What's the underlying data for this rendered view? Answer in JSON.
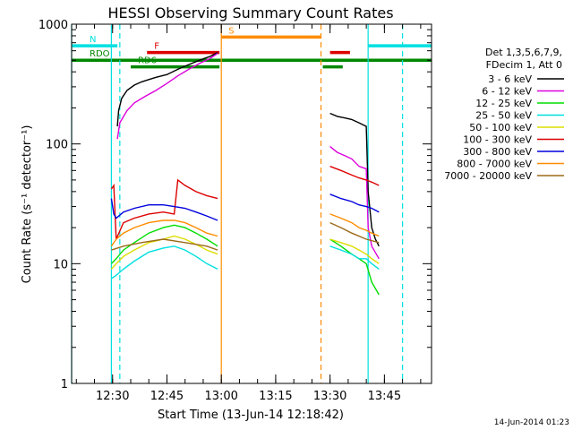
{
  "chart_data": {
    "type": "line",
    "title": "HESSI Observing Summary Count Rates",
    "xlabel": "Start Time (13-Jun-14 12:18:42)",
    "ylabel": "Count Rate (s⁻¹ detector⁻¹)",
    "y_scale": "log",
    "ylim": [
      1,
      1000
    ],
    "xlim": [
      "12:18:42",
      "13:58:00"
    ],
    "y_ticks": [
      "1",
      "10",
      "100",
      "1000"
    ],
    "x_ticks": [
      "12:30",
      "12:45",
      "13:00",
      "13:15",
      "13:30",
      "13:45"
    ],
    "footer_date": "14-Jun-2014 01:23",
    "legend": {
      "header": [
        "Det 1,3,5,6,7,9,",
        "FDecim 1, Att 0"
      ],
      "placement": "right"
    },
    "series": [
      {
        "name": "3 - 6 keV",
        "color": "#000000",
        "segments": [
          {
            "x": [
              "12:31:20",
              "12:31:40",
              "12:32:30",
              "12:34:00",
              "12:36:00",
              "12:38:00",
              "12:40:00",
              "12:42:00",
              "12:45:00",
              "12:48:00",
              "12:51:00",
              "12:54:00",
              "12:57:00",
              "12:59:00"
            ],
            "y": [
              140,
              190,
              240,
              280,
              310,
              330,
              345,
              360,
              380,
              420,
              460,
              500,
              540,
              580
            ]
          },
          {
            "x": [
              "13:30:00",
              "13:32:00",
              "13:34:00",
              "13:36:00",
              "13:38:00",
              "13:40:00",
              "13:40:30",
              "13:41:30",
              "13:42:30",
              "13:43:30"
            ],
            "y": [
              180,
              170,
              165,
              160,
              150,
              140,
              40,
              20,
              16,
              14
            ]
          }
        ]
      },
      {
        "name": "6 - 12 keV",
        "color": "#dd00dd",
        "segments": [
          {
            "x": [
              "12:31:20",
              "12:32:00",
              "12:34:00",
              "12:36:00",
              "12:39:00",
              "12:42:00",
              "12:45:00",
              "12:48:00",
              "12:51:00",
              "12:54:00",
              "12:57:00",
              "12:59:00"
            ],
            "y": [
              110,
              150,
              190,
              220,
              250,
              280,
              320,
              370,
              420,
              470,
              520,
              570
            ]
          },
          {
            "x": [
              "13:30:00",
              "13:32:00",
              "13:34:00",
              "13:36:00",
              "13:38:00",
              "13:40:00",
              "13:40:30",
              "13:41:30",
              "13:43:30"
            ],
            "y": [
              95,
              85,
              80,
              75,
              65,
              62,
              20,
              14,
              11
            ]
          }
        ]
      },
      {
        "name": "12 - 25 keV",
        "color": "#00dd00",
        "segments": [
          {
            "x": [
              "12:29:40",
              "12:31:00",
              "12:33:00",
              "12:36:00",
              "12:40:00",
              "12:44:00",
              "12:47:00",
              "12:50:00",
              "12:53:00",
              "12:56:00",
              "12:59:00"
            ],
            "y": [
              10,
              11,
              13,
              15,
              18,
              20,
              21,
              20,
              18,
              16,
              14
            ]
          },
          {
            "x": [
              "13:30:00",
              "13:33:00",
              "13:36:00",
              "13:38:00",
              "13:40:00",
              "13:41:30",
              "13:43:30"
            ],
            "y": [
              16,
              14,
              12,
              11,
              10,
              7,
              5.5
            ]
          }
        ]
      },
      {
        "name": "25 - 50 keV",
        "color": "#00e0e0",
        "segments": [
          {
            "x": [
              "12:29:40",
              "12:31:00",
              "12:33:00",
              "12:36:00",
              "12:40:00",
              "12:44:00",
              "12:47:00",
              "12:50:00",
              "12:53:00",
              "12:56:00",
              "12:59:00"
            ],
            "y": [
              7.5,
              8,
              9,
              10.5,
              12.5,
              13.5,
              14,
              13,
              11.5,
              10,
              9
            ]
          },
          {
            "x": [
              "13:30:00",
              "13:33:00",
              "13:36:00",
              "13:38:00",
              "13:40:00",
              "13:41:30",
              "13:43:30"
            ],
            "y": [
              14,
              13,
              12,
              11,
              11,
              10,
              9
            ]
          }
        ]
      },
      {
        "name": "50 - 100 keV",
        "color": "#dddd00",
        "segments": [
          {
            "x": [
              "12:29:40",
              "12:31:00",
              "12:33:00",
              "12:36:00",
              "12:40:00",
              "12:44:00",
              "12:47:00",
              "12:50:00",
              "12:53:00",
              "12:56:00",
              "12:59:00"
            ],
            "y": [
              9,
              10,
              11.5,
              13,
              15,
              16,
              17,
              16,
              14.5,
              13,
              12
            ]
          },
          {
            "x": [
              "13:30:00",
              "13:33:00",
              "13:36:00",
              "13:38:00",
              "13:40:00",
              "13:41:30",
              "13:43:30"
            ],
            "y": [
              16,
              15,
              14,
              13,
              12,
              11,
              10
            ]
          }
        ]
      },
      {
        "name": "100 - 300 keV",
        "color": "#dd0000",
        "segments": [
          {
            "x": [
              "12:29:40",
              "12:30:20",
              "12:31:00",
              "12:33:00",
              "12:36:00",
              "12:40:00",
              "12:44:00",
              "12:47:00",
              "12:48:00",
              "12:50:00",
              "12:53:00",
              "12:56:00",
              "12:59:00"
            ],
            "y": [
              42,
              45,
              16,
              22,
              24,
              26,
              27,
              26,
              50,
              45,
              40,
              37,
              35
            ]
          },
          {
            "x": [
              "13:30:00",
              "13:33:00",
              "13:36:00",
              "13:38:00",
              "13:40:00",
              "13:41:30",
              "13:43:30"
            ],
            "y": [
              65,
              60,
              55,
              52,
              50,
              48,
              45
            ]
          }
        ]
      },
      {
        "name": "300 - 800 keV",
        "color": "#0000dd",
        "segments": [
          {
            "x": [
              "12:29:40",
              "12:30:20",
              "12:31:00",
              "12:33:00",
              "12:36:00",
              "12:40:00",
              "12:44:00",
              "12:47:00",
              "12:50:00",
              "12:53:00",
              "12:56:00",
              "12:59:00"
            ],
            "y": [
              35,
              26,
              24,
              27,
              29,
              31,
              31,
              30,
              29,
              27,
              25,
              23
            ]
          },
          {
            "x": [
              "13:30:00",
              "13:33:00",
              "13:36:00",
              "13:38:00",
              "13:40:00",
              "13:41:30",
              "13:43:30"
            ],
            "y": [
              38,
              35,
              33,
              31,
              30,
              29,
              27
            ]
          }
        ]
      },
      {
        "name": "800 - 7000 keV",
        "color": "#ff8c00",
        "segments": [
          {
            "x": [
              "12:29:40",
              "12:31:00",
              "12:33:00",
              "12:36:00",
              "12:40:00",
              "12:44:00",
              "12:47:00",
              "12:50:00",
              "12:53:00",
              "12:56:00",
              "12:59:00"
            ],
            "y": [
              14,
              16,
              18,
              20,
              22,
              23,
              23,
              22,
              20,
              18,
              17
            ]
          },
          {
            "x": [
              "13:30:00",
              "13:33:00",
              "13:36:00",
              "13:38:00",
              "13:40:00",
              "13:41:30",
              "13:43:30"
            ],
            "y": [
              26,
              24,
              22,
              20,
              19,
              18,
              17
            ]
          }
        ]
      },
      {
        "name": "7000 - 20000 keV",
        "color": "#9b6a17",
        "segments": [
          {
            "x": [
              "12:29:40",
              "12:33:00",
              "12:38:00",
              "12:44:00",
              "12:50:00",
              "12:56:00",
              "12:59:00"
            ],
            "y": [
              13,
              14,
              15,
              16,
              15,
              14,
              13
            ]
          },
          {
            "x": [
              "13:30:00",
              "13:33:00",
              "13:36:00",
              "13:40:00",
              "13:43:30"
            ],
            "y": [
              22,
              20,
              18,
              16,
              15
            ]
          }
        ]
      }
    ],
    "flag_bars": [
      {
        "label": "N",
        "color": "#00e0e0",
        "y": 660,
        "segments": [
          [
            "12:18:42",
            "12:31:20"
          ],
          [
            "13:40:30",
            "13:58:00"
          ]
        ]
      },
      {
        "label": "F",
        "color": "#dd0000",
        "y": 580,
        "segments": [
          [
            "12:39:30",
            "12:59:30"
          ],
          [
            "13:30:00",
            "13:35:30"
          ]
        ]
      },
      {
        "label": "RDO",
        "color": "#008800",
        "y": 500,
        "segments": [
          [
            "12:18:42",
            "13:58:00"
          ]
        ]
      },
      {
        "label": "RD6",
        "color": "#008800",
        "y": 440,
        "segments": [
          [
            "12:35:00",
            "12:59:30"
          ],
          [
            "13:28:00",
            "13:33:30"
          ]
        ]
      },
      {
        "label": "S",
        "color": "#ff8c00",
        "y": 780,
        "segments": [
          [
            "13:00:00",
            "13:27:30"
          ]
        ]
      }
    ],
    "vertical_markers": [
      {
        "x": "12:18:42",
        "color": "#00e0e0",
        "style": "solid"
      },
      {
        "x": "12:29:40",
        "color": "#00e0e0",
        "style": "solid"
      },
      {
        "x": "12:32:00",
        "color": "#00e0e0",
        "style": "dashed"
      },
      {
        "x": "13:00:00",
        "color": "#ff8c00",
        "style": "solid"
      },
      {
        "x": "13:27:30",
        "color": "#ff8c00",
        "style": "dashed"
      },
      {
        "x": "13:40:30",
        "color": "#00e0e0",
        "style": "solid"
      },
      {
        "x": "13:50:00",
        "color": "#00e0e0",
        "style": "dashed"
      }
    ]
  }
}
